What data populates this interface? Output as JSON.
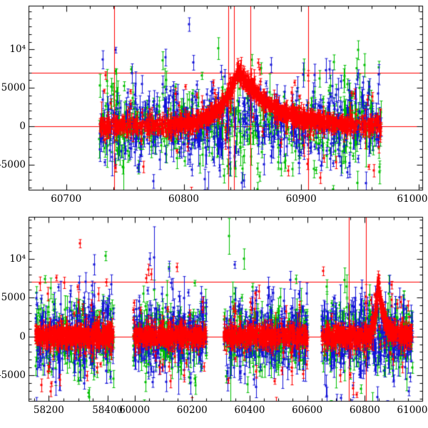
{
  "figure": {
    "seed": 20240611,
    "marker": "square-with-error-bars",
    "description": "Two-panel photometric light curve scatter plot (flux vs MJD) with three color series and red reference lines; red series shows a flare peaking near MJD 60846."
  },
  "colors": {
    "red": "#ff0000",
    "green": "#00bf00",
    "blue": "#1414d8",
    "axis": "#000000",
    "ref_line": "#ff0000",
    "background": "#ffffff"
  },
  "chart_data": [
    {
      "type": "scatter",
      "panel": "top",
      "title": "",
      "xlabel": "",
      "ylabel": "",
      "x_axis": {
        "range": [
          60668,
          61003
        ],
        "ticks": [
          60700,
          60800,
          60900,
          61000
        ],
        "tick_labels": [
          "60700",
          "60800",
          "60900",
          "61000"
        ],
        "minor_step": 20
      },
      "y_axis": {
        "range": [
          -8300,
          15700
        ],
        "ticks": [
          -5000,
          0,
          5000,
          10000
        ],
        "tick_labels": [
          "-5000",
          "0",
          "5000",
          "10⁴"
        ],
        "minor_step": 1000
      },
      "ref_lines": {
        "horizontal": [
          0,
          7000
        ],
        "vertical": [
          60741,
          60838,
          60843,
          60857,
          60906
        ]
      },
      "flare": {
        "center": 60846,
        "peak": 7300
      },
      "series": [
        {
          "name": "green",
          "color": "green",
          "groups": [
            {
              "x0": 60728,
              "x1": 60968,
              "n": 560,
              "sigma": 2100,
              "tail_frac": 0.1,
              "tail_sigma": 5200,
              "err": [
                350,
                1600
              ]
            }
          ]
        },
        {
          "name": "blue",
          "color": "blue",
          "groups": [
            {
              "x0": 60728,
              "x1": 60968,
              "n": 560,
              "sigma": 2400,
              "tail_frac": 0.1,
              "tail_sigma": 5600,
              "err": [
                350,
                1600
              ]
            }
          ]
        },
        {
          "name": "red",
          "color": "red",
          "groups": [
            {
              "x0": 60728,
              "x1": 60968,
              "n": 900,
              "sigma": 520,
              "tail_frac": 0.07,
              "tail_sigma": 3800,
              "err": [
                250,
                900
              ],
              "flare": {
                "center": 60846,
                "amp": 7300,
                "rise_tau": 14,
                "decay_tau": 28
              }
            },
            {
              "x0": 60792,
              "x1": 60945,
              "n": 650,
              "sigma": 260,
              "tail_frac": 0.03,
              "tail_sigma": 2500,
              "err": [
                200,
                550
              ],
              "flare": {
                "center": 60846,
                "amp": 7300,
                "rise_tau": 14,
                "decay_tau": 28
              }
            }
          ]
        }
      ]
    },
    {
      "type": "scatter",
      "panel": "bottom",
      "title": "",
      "xlabel": "",
      "ylabel": "",
      "x_axis": {
        "segments": [
          {
            "x0": 58131,
            "x1": 58453,
            "f0": 0,
            "f1": 0.24
          },
          {
            "x0": 59960,
            "x1": 61000,
            "f0": 0.24,
            "f1": 1
          }
        ],
        "ticks": [
          58200,
          58400,
          60000,
          60200,
          60400,
          60600,
          60800,
          61000
        ],
        "tick_labels": [
          "58200",
          "58400",
          "60000",
          "60200",
          "60400",
          "60600",
          "60800",
          "61000"
        ],
        "minor_step": 50
      },
      "y_axis": {
        "range": [
          -8300,
          15400
        ],
        "ticks": [
          -5000,
          0,
          5000,
          10000
        ],
        "tick_labels": [
          "-5000",
          "0",
          "5000",
          "10⁴"
        ],
        "minor_step": 1000
      },
      "ref_lines": {
        "horizontal": [
          0,
          7000
        ],
        "vertical": [
          60745,
          60803
        ]
      },
      "flare": {
        "center": 60846,
        "peak": 7000
      },
      "series": [
        {
          "name": "green",
          "color": "green",
          "groups": [
            {
              "x0": 58155,
              "x1": 58420,
              "n": 240,
              "sigma": 2000,
              "tail_frac": 0.1,
              "tail_sigma": 5000,
              "err": [
                350,
                1600
              ]
            },
            {
              "x0": 59995,
              "x1": 60250,
              "n": 220,
              "sigma": 2000,
              "tail_frac": 0.1,
              "tail_sigma": 5000,
              "err": [
                350,
                1600
              ]
            },
            {
              "x0": 60310,
              "x1": 60600,
              "n": 240,
              "sigma": 2000,
              "tail_frac": 0.1,
              "tail_sigma": 5000,
              "err": [
                350,
                1600
              ]
            },
            {
              "x0": 60650,
              "x1": 60965,
              "n": 280,
              "sigma": 2000,
              "tail_frac": 0.1,
              "tail_sigma": 5000,
              "err": [
                350,
                1600
              ]
            }
          ]
        },
        {
          "name": "blue",
          "color": "blue",
          "groups": [
            {
              "x0": 58155,
              "x1": 58420,
              "n": 240,
              "sigma": 2300,
              "tail_frac": 0.1,
              "tail_sigma": 5400,
              "err": [
                350,
                1600
              ]
            },
            {
              "x0": 59995,
              "x1": 60250,
              "n": 220,
              "sigma": 2300,
              "tail_frac": 0.1,
              "tail_sigma": 5400,
              "err": [
                350,
                1600
              ]
            },
            {
              "x0": 60310,
              "x1": 60600,
              "n": 240,
              "sigma": 2300,
              "tail_frac": 0.1,
              "tail_sigma": 5400,
              "err": [
                350,
                1600
              ]
            },
            {
              "x0": 60650,
              "x1": 60965,
              "n": 280,
              "sigma": 2300,
              "tail_frac": 0.1,
              "tail_sigma": 5400,
              "err": [
                350,
                1600
              ]
            }
          ]
        },
        {
          "name": "red",
          "color": "red",
          "groups": [
            {
              "x0": 58155,
              "x1": 58420,
              "n": 500,
              "sigma": 550,
              "tail_frac": 0.08,
              "tail_sigma": 4200,
              "err": [
                250,
                900
              ]
            },
            {
              "x0": 59995,
              "x1": 60250,
              "n": 450,
              "sigma": 550,
              "tail_frac": 0.08,
              "tail_sigma": 4200,
              "err": [
                250,
                900
              ]
            },
            {
              "x0": 60310,
              "x1": 60600,
              "n": 480,
              "sigma": 550,
              "tail_frac": 0.08,
              "tail_sigma": 4200,
              "err": [
                250,
                900
              ]
            },
            {
              "x0": 60650,
              "x1": 60965,
              "n": 560,
              "sigma": 550,
              "tail_frac": 0.08,
              "tail_sigma": 4200,
              "err": [
                250,
                900
              ],
              "flare": {
                "center": 60846,
                "amp": 7000,
                "rise_tau": 10,
                "decay_tau": 20
              }
            },
            {
              "x0": 60805,
              "x1": 60895,
              "n": 320,
              "sigma": 260,
              "tail_frac": 0.03,
              "tail_sigma": 2500,
              "err": [
                200,
                500
              ],
              "flare": {
                "center": 60846,
                "amp": 7000,
                "rise_tau": 10,
                "decay_tau": 20
              }
            }
          ]
        }
      ]
    }
  ]
}
